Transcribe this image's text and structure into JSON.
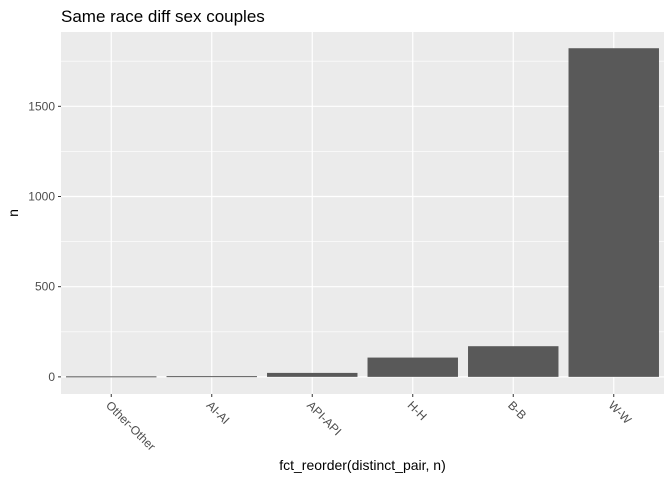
{
  "chart_data": {
    "type": "bar",
    "title": "Same race diff sex couples",
    "xlabel": "fct_reorder(distinct_pair, n)",
    "ylabel": "n",
    "categories": [
      "Other-Other",
      "AI-AI",
      "API-API",
      "H-H",
      "B-B",
      "W-W"
    ],
    "values": [
      3,
      4,
      22,
      107,
      170,
      1822
    ],
    "ylim": [
      -95,
      1912
    ],
    "yticks": [
      0,
      500,
      1000,
      1500
    ],
    "grid": true,
    "colors": {
      "panel": "#EBEBEB",
      "bar": "#595959",
      "grid": "#FFFFFF"
    }
  }
}
